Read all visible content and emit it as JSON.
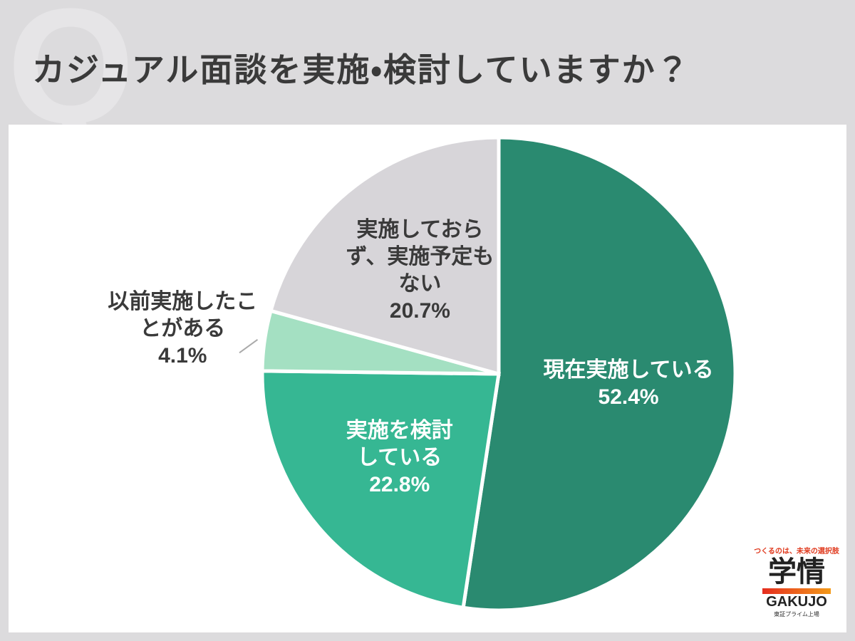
{
  "watermark": "Q",
  "chart_data": {
    "type": "pie",
    "title": "カジュアル面談を実施・検討していますか？",
    "categories": [
      "現在実施している",
      "実施を検討している",
      "以前実施したことがある",
      "実施しておらず、実施予定もない"
    ],
    "values": [
      52.4,
      22.8,
      4.1,
      20.7
    ],
    "value_labels": [
      "52.4%",
      "22.8%",
      "4.1%",
      "20.7%"
    ],
    "colors": [
      "#2a8a70",
      "#36b793",
      "#a4e0c2",
      "#d7d5d9"
    ]
  },
  "logo": {
    "tagline": "つくるのは、未来の選択肢",
    "name": "学情",
    "roman": "GAKUJO",
    "listing": "東証プライム上場"
  }
}
